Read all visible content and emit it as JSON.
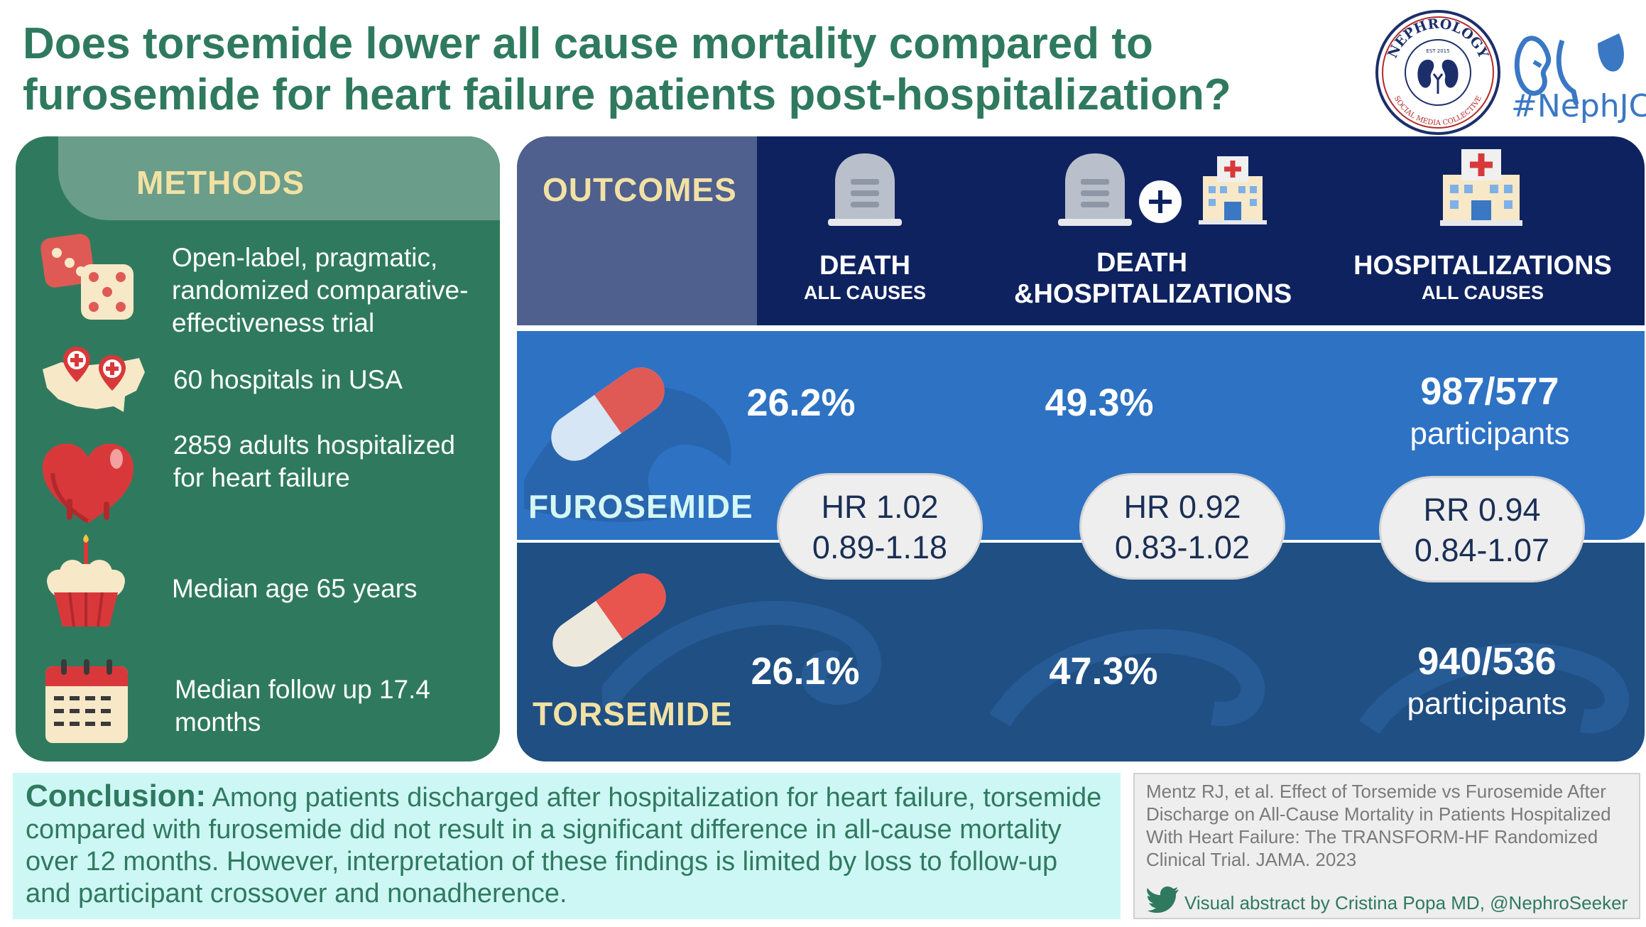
{
  "title": {
    "line1": "Does torsemide lower all cause mortality compared to",
    "line2": "furosemide for heart failure patients post-hospitalization?"
  },
  "logos": {
    "nephrology_text": "NEPHROLOGY",
    "nephrology_sub": "SOCIAL MEDIA COLLECTIVE",
    "nephrology_est": "EST 2015",
    "nephjc_tag": "#NephJC"
  },
  "methods": {
    "title": "METHODS",
    "items": [
      {
        "icon": "dice-icon",
        "text": [
          "Open-label, pragmatic,",
          "randomized comparative-",
          "effectiveness trial"
        ]
      },
      {
        "icon": "usa-map-pins-icon",
        "text": [
          "60 hospitals in USA"
        ]
      },
      {
        "icon": "heart-icon",
        "text": [
          "2859 adults hospitalized",
          "for heart failure"
        ]
      },
      {
        "icon": "cupcake-icon",
        "text": [
          "Median age 65 years"
        ]
      },
      {
        "icon": "calendar-icon",
        "text": [
          "Median follow up 17.4",
          "months"
        ]
      }
    ]
  },
  "outcomes": {
    "title": "OUTCOMES",
    "columns": [
      {
        "main": "DEATH",
        "sub": "ALL CAUSES",
        "icon": "tombstone-icon"
      },
      {
        "main": "DEATH",
        "sub": "&HOSPITALIZATIONS",
        "icon": "tombstone-plus-hospital-icon"
      },
      {
        "main": "HOSPITALIZATIONS",
        "sub": "ALL CAUSES",
        "icon": "hospital-icon"
      }
    ]
  },
  "furosemide": {
    "label": "FUROSEMIDE",
    "death": "26.2%",
    "death_hosp": "49.3%",
    "hosp_n": "987/577",
    "hosp_unit": "participants"
  },
  "torsemide": {
    "label": "TORSEMIDE",
    "death": "26.1%",
    "death_hosp": "47.3%",
    "hosp_n": "940/536",
    "hosp_unit": "participants"
  },
  "ratios": [
    {
      "line1": "HR 1.02",
      "line2": "0.89-1.18"
    },
    {
      "line1": "HR 0.92",
      "line2": "0.83-1.02"
    },
    {
      "line1": "RR 0.94",
      "line2": "0.84-1.07"
    }
  ],
  "conclusion": {
    "label": "Conclusion:",
    "text": "Among patients discharged after hospitalization for heart failure, torsemide compared with furosemide did not result in a significant difference in all-cause mortality over 12 months. However, interpretation of these findings is limited by loss to follow-up and participant crossover and nonadherence."
  },
  "reference": {
    "text": "Mentz RJ, et al. Effect of Torsemide vs Furosemide After Discharge on All-Cause Mortality in Patients Hospitalized With Heart Failure: The TRANSFORM-HF Randomized Clinical Trial. JAMA. 2023",
    "credit": "Visual abstract by Cristina Popa MD, @NephroSeeker"
  },
  "colors": {
    "green": "#2f7a5f",
    "navy": "#0f2260",
    "furosemide_blue": "#2e72c4",
    "torsemide_blue": "#1f4f83",
    "gold": "#f2e1a4",
    "conclusion_bg": "#cdf7f5"
  }
}
